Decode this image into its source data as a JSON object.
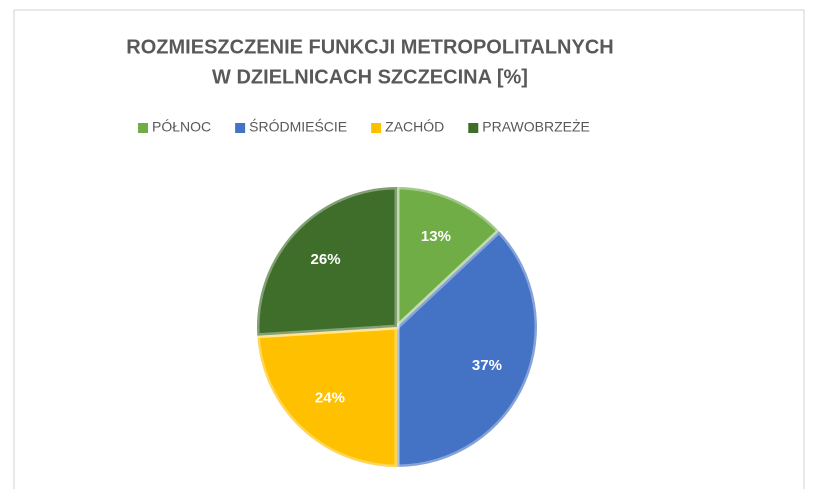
{
  "chart_data": {
    "type": "pie",
    "title": [
      "ROZMIESZCZENIE FUNKCJI METROPOLITALNYCH",
      "W DZIELNICACH SZCZECINA [%]"
    ],
    "categories": [
      "PÓŁNOC",
      "ŚRÓDMIEŚCIE",
      "ZACHÓD",
      "PRAWOBRZEŻE"
    ],
    "values": [
      13,
      37,
      24,
      26
    ],
    "value_labels": [
      "13%",
      "37%",
      "24%",
      "26%"
    ],
    "colors": [
      "#70ad47",
      "#4472c4",
      "#ffc000",
      "#3f6e2a"
    ],
    "legend": "top"
  }
}
